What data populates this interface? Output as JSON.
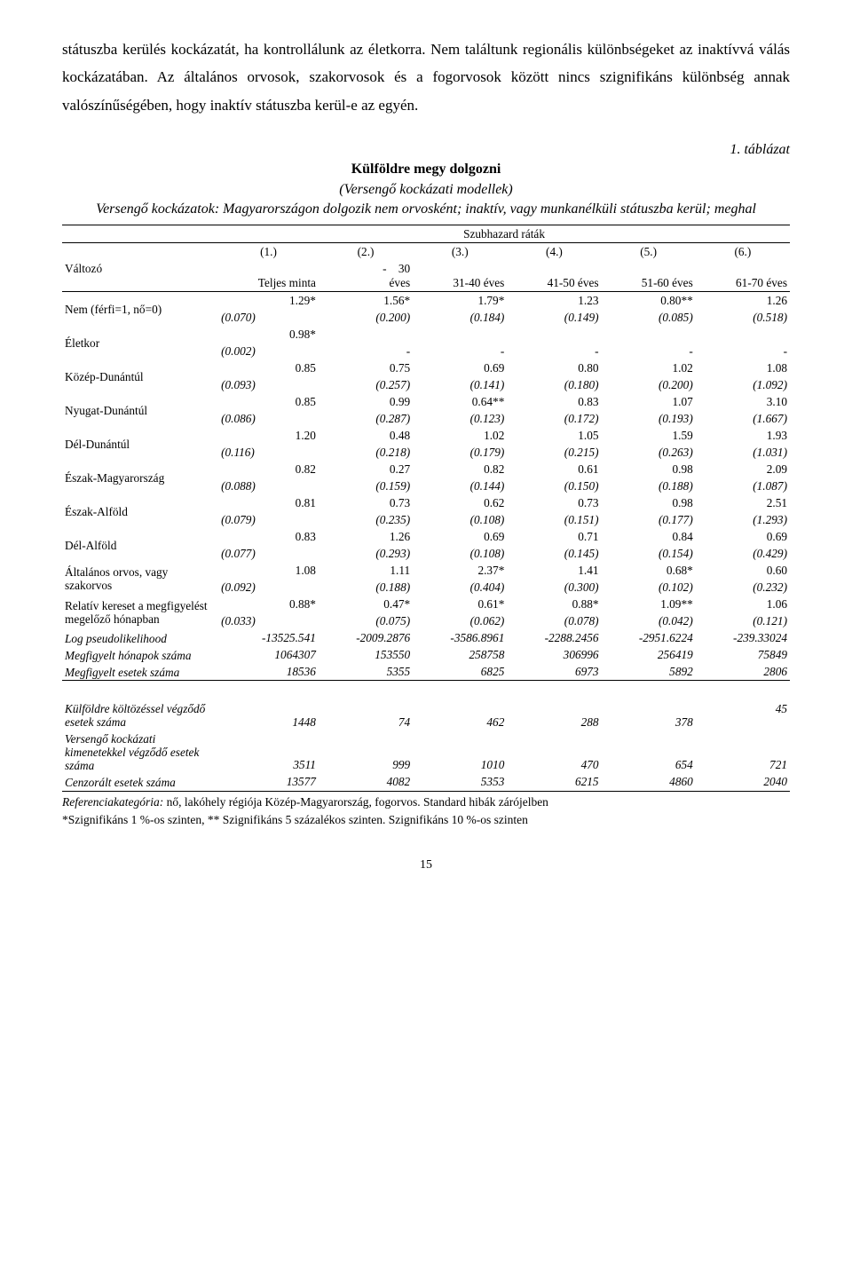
{
  "paragraph": "státuszba kerülés kockázatát, ha kontrollálunk az életkorra. Nem találtunk regionális különbségeket az inaktívvá válás kockázatában. Az általános orvosok, szakorvosok és a fogorvosok között nincs szignifikáns különbség annak valószínűségében, hogy inaktív státuszba kerül-e az egyén.",
  "table_note": "1. táblázat",
  "title_bold": "Külföldre megy dolgozni",
  "title_line2": "(Versengő kockázati modellek)",
  "title_line3": "Versengő kockázatok: Magyarországon dolgozik nem orvosként; inaktív, vagy munkanélküli státuszba kerül; meghal",
  "subhazard": "Szubhazard ráták",
  "colnums": [
    "(1.)",
    "(2.)",
    "(3.)",
    "(4.)",
    "(5.)",
    "(6.)"
  ],
  "var_label": "Változó",
  "cols": [
    "Teljes minta",
    "-    30 éves",
    "31-40 éves",
    "41-50 éves",
    "51-60 éves",
    "61-70 éves"
  ],
  "rows": [
    {
      "label": "Nem (férfi=1, nő=0)",
      "vals": [
        "1.29*",
        "1.56*",
        "1.79*",
        "1.23",
        "0.80**",
        "1.26"
      ],
      "se": [
        "(0.070)",
        "(0.200)",
        "(0.184)",
        "(0.149)",
        "(0.085)",
        "(0.518)"
      ]
    },
    {
      "label": "Életkor",
      "vals": [
        "0.98*",
        "",
        "",
        "",
        "",
        ""
      ],
      "se": [
        "(0.002)",
        "-",
        "-",
        "-",
        "-",
        "-"
      ]
    },
    {
      "label": "Közép-Dunántúl",
      "vals": [
        "0.85",
        "0.75",
        "0.69",
        "0.80",
        "1.02",
        "1.08"
      ],
      "se": [
        "(0.093)",
        "(0.257)",
        "(0.141)",
        "(0.180)",
        "(0.200)",
        "(1.092)"
      ]
    },
    {
      "label": "Nyugat-Dunántúl",
      "vals": [
        "0.85",
        "0.99",
        "0.64**",
        "0.83",
        "1.07",
        "3.10"
      ],
      "se": [
        "(0.086)",
        "(0.287)",
        "(0.123)",
        "(0.172)",
        "(0.193)",
        "(1.667)"
      ]
    },
    {
      "label": "Dél-Dunántúl",
      "vals": [
        "1.20",
        "0.48",
        "1.02",
        "1.05",
        "1.59",
        "1.93"
      ],
      "se": [
        "(0.116)",
        "(0.218)",
        "(0.179)",
        "(0.215)",
        "(0.263)",
        "(1.031)"
      ]
    },
    {
      "label": "Észak-Magyarország",
      "vals": [
        "0.82",
        "0.27",
        "0.82",
        "0.61",
        "0.98",
        "2.09"
      ],
      "se": [
        "(0.088)",
        "(0.159)",
        "(0.144)",
        "(0.150)",
        "(0.188)",
        "(1.087)"
      ]
    },
    {
      "label": "Észak-Alföld",
      "vals": [
        "0.81",
        "0.73",
        "0.62",
        "0.73",
        "0.98",
        "2.51"
      ],
      "se": [
        "(0.079)",
        "(0.235)",
        "(0.108)",
        "(0.151)",
        "(0.177)",
        "(1.293)"
      ]
    },
    {
      "label": "Dél-Alföld",
      "vals": [
        "0.83",
        "1.26",
        "0.69",
        "0.71",
        "0.84",
        "0.69"
      ],
      "se": [
        "(0.077)",
        "(0.293)",
        "(0.108)",
        "(0.145)",
        "(0.154)",
        "(0.429)"
      ]
    },
    {
      "label": "Általános orvos, vagy szakorvos",
      "vals": [
        "1.08",
        "1.11",
        "2.37*",
        "1.41",
        "0.68*",
        "0.60"
      ],
      "se": [
        "(0.092)",
        "(0.188)",
        "(0.404)",
        "(0.300)",
        "(0.102)",
        "(0.232)"
      ]
    },
    {
      "label": "Relatív kereset a megfigyelést megelőző hónapban",
      "vals": [
        "0.88*",
        "0.47*",
        "0.61*",
        "0.88*",
        "1.09**",
        "1.06"
      ],
      "se": [
        "(0.033)",
        "(0.075)",
        "(0.062)",
        "(0.078)",
        "(0.042)",
        "(0.121)"
      ]
    }
  ],
  "plain_rows": [
    {
      "label": "Log pseudolikelihood",
      "vals": [
        "-13525.541",
        "-2009.2876",
        "-3586.8961",
        "-2288.2456",
        "-2951.6224",
        "-239.33024"
      ],
      "ital": true
    },
    {
      "label": "Megfigyelt hónapok száma",
      "vals": [
        "1064307",
        "153550",
        "258758",
        "306996",
        "256419",
        "75849"
      ],
      "ital": true,
      "last_top": true
    },
    {
      "label": "Megfigyelt esetek száma",
      "vals": [
        "18536",
        "5355",
        "6825",
        "6973",
        "5892",
        "2806"
      ],
      "ital": true
    }
  ],
  "plain_rows2": [
    {
      "label": "Külföldre költözéssel végződő esetek száma",
      "vals": [
        "1448",
        "74",
        "462",
        "288",
        "378",
        "45"
      ],
      "ital": true,
      "last_top": true
    },
    {
      "label": "Versengő kockázati kimenetekkel végződő esetek száma",
      "vals": [
        "3511",
        "999",
        "1010",
        "470",
        "654",
        "721"
      ],
      "ital": true
    },
    {
      "label": "Cenzorált esetek száma",
      "vals": [
        "13577",
        "4082",
        "5353",
        "6215",
        "4860",
        "2040"
      ],
      "ital": true
    }
  ],
  "footnote1": "Referenciakategória: nő, lakóhely régiója Közép-Magyarország, fogorvos. Standard hibák zárójelben",
  "footnote1_label": "Referenciakategória:",
  "footnote1_rest": " nő, lakóhely régiója Közép-Magyarország, fogorvos. Standard hibák zárójelben",
  "footnote2": "*Szignifikáns 1 %-os szinten, ** Szignifikáns 5 százalékos szinten. Szignifikáns 10 %-os szinten",
  "page_number": "15"
}
